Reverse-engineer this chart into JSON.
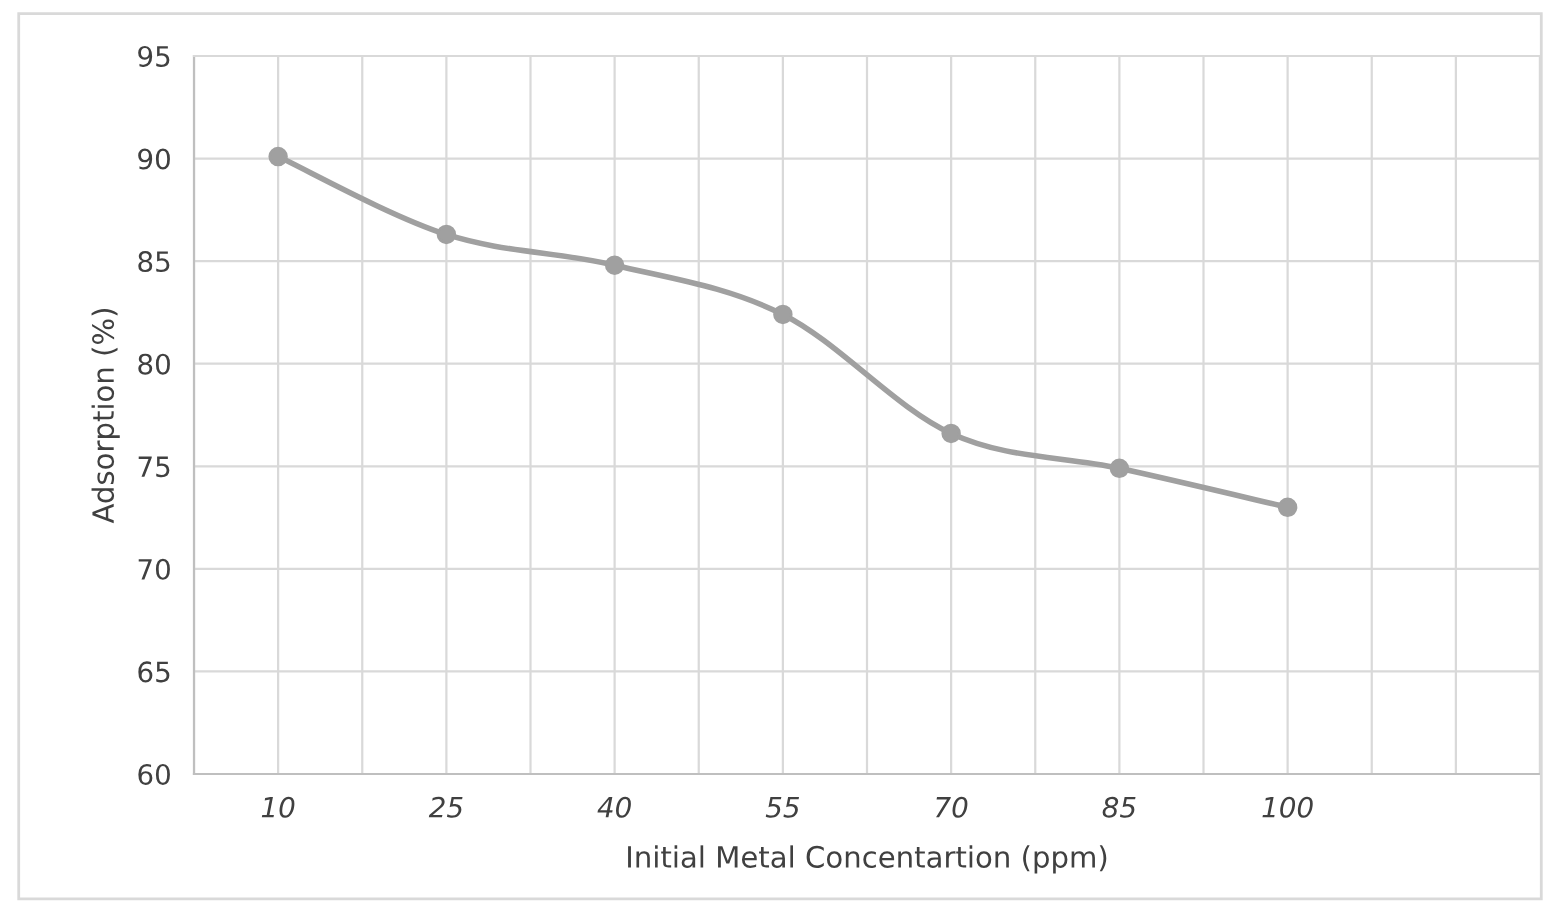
{
  "chart_data": {
    "type": "line",
    "xlabel": "Initial Metal Concentartion (ppm)",
    "ylabel": "Adsorption (%)",
    "categories": [
      "10",
      "25",
      "40",
      "55",
      "70",
      "85",
      "100",
      null
    ],
    "series": [
      {
        "color": "#a0a0a0",
        "values": [
          90.1,
          86.3,
          84.8,
          82.4,
          76.6,
          74.9,
          73.0,
          null
        ]
      }
    ],
    "ylim": [
      60,
      95
    ],
    "yticks": [
      60,
      65,
      70,
      75,
      80,
      85,
      90,
      95
    ],
    "grid": true,
    "marker": "circle",
    "line_style": "solid"
  }
}
